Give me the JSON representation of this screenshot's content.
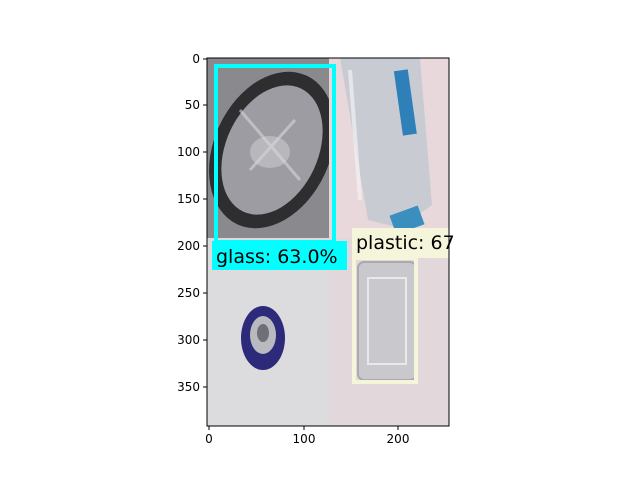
{
  "figure": {
    "x_ticks": [
      "0",
      "100",
      "200"
    ],
    "y_ticks": [
      "0",
      "50",
      "100",
      "150",
      "200",
      "250",
      "300",
      "350"
    ]
  },
  "image_panels": [
    {
      "name": "foil-plate-panel"
    },
    {
      "name": "water-bottle-panel"
    },
    {
      "name": "bottle-cap-panel"
    },
    {
      "name": "plastic-tray-panel"
    }
  ],
  "detections": [
    {
      "label": "glass: 63.0%",
      "color": "#00ffff"
    },
    {
      "label": "plastic: 67",
      "color": "#f5f5dc"
    }
  ]
}
